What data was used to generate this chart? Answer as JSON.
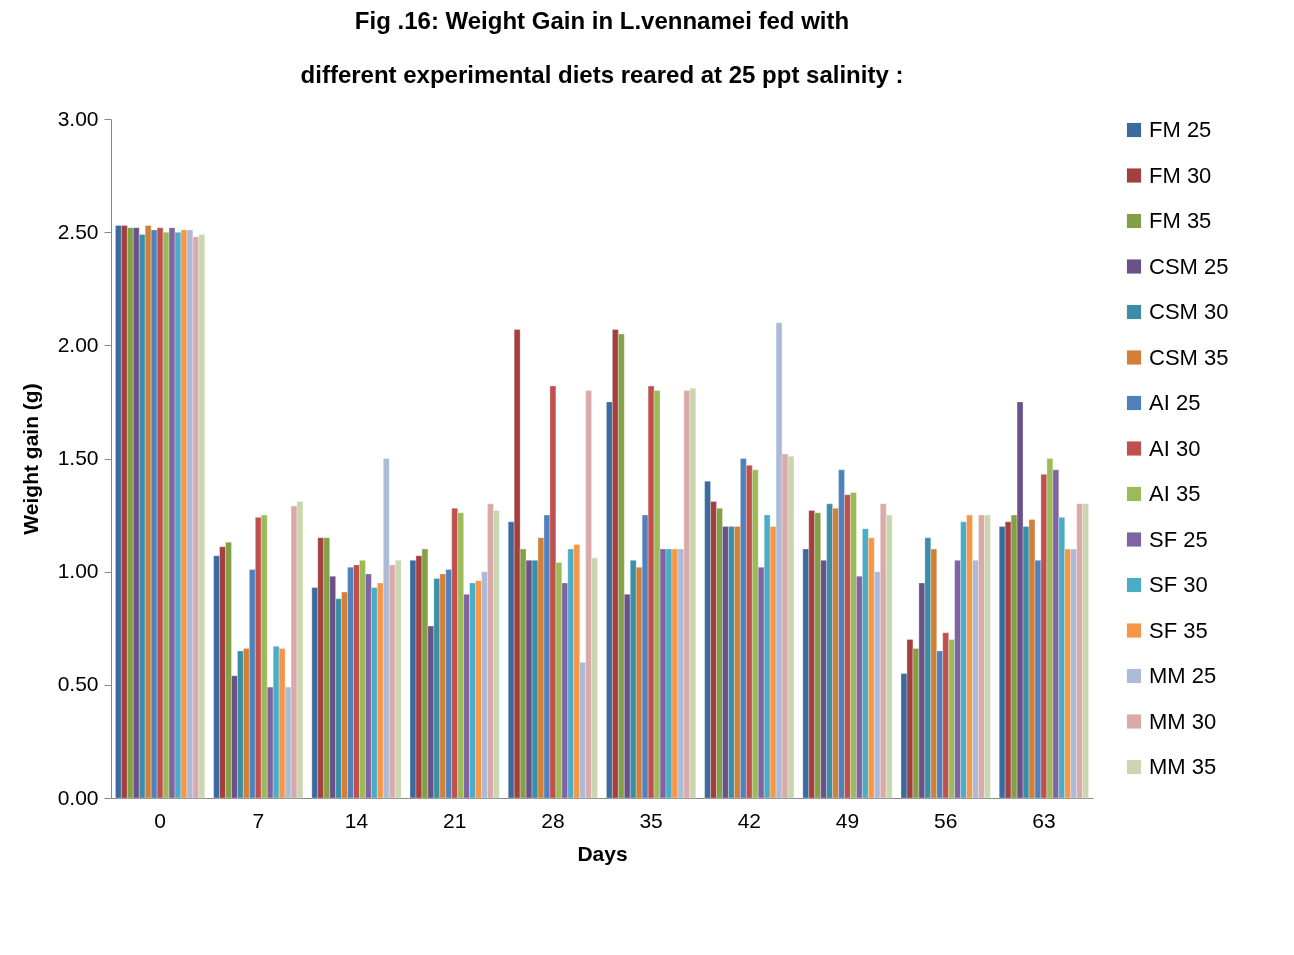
{
  "chart_data": {
    "type": "bar",
    "title": "Fig .16:  Weight Gain in L.vennamei fed with\ndifferent experimental diets reared at 25 ppt salinity :",
    "xlabel": "Days",
    "ylabel": "Weight gain (g)",
    "categories": [
      "0",
      "7",
      "14",
      "21",
      "28",
      "35",
      "42",
      "49",
      "56",
      "63"
    ],
    "ylim": [
      0,
      3
    ],
    "yticks": [
      {
        "value": 0,
        "label": "0.00"
      },
      {
        "value": 0.5,
        "label": "0.50"
      },
      {
        "value": 1,
        "label": "1.00"
      },
      {
        "value": 1.5,
        "label": "1.50"
      },
      {
        "value": 2,
        "label": "2.00"
      },
      {
        "value": 2.5,
        "label": "2.50"
      },
      {
        "value": 3,
        "label": "3.00"
      }
    ],
    "grid": false,
    "legend": "right",
    "series": [
      {
        "name": "FM 25",
        "color": "#3b6aa0",
        "values": [
          2.53,
          1.07,
          0.93,
          1.05,
          1.22,
          1.75,
          1.4,
          1.1,
          0.55,
          1.2
        ]
      },
      {
        "name": "FM 30",
        "color": "#a33f3c",
        "values": [
          2.53,
          1.11,
          1.15,
          1.07,
          2.07,
          2.07,
          1.31,
          1.27,
          0.7,
          1.22
        ]
      },
      {
        "name": "FM 35",
        "color": "#83a047",
        "values": [
          2.52,
          1.13,
          1.15,
          1.1,
          1.1,
          2.05,
          1.28,
          1.26,
          0.66,
          1.25
        ]
      },
      {
        "name": "CSM 25",
        "color": "#6a5189",
        "values": [
          2.52,
          0.54,
          0.98,
          0.76,
          1.05,
          0.9,
          1.2,
          1.05,
          0.95,
          1.75
        ]
      },
      {
        "name": "CSM 30",
        "color": "#3a8fa6",
        "values": [
          2.49,
          0.65,
          0.88,
          0.97,
          1.05,
          1.05,
          1.2,
          1.3,
          1.15,
          1.2
        ]
      },
      {
        "name": "CSM 35",
        "color": "#d27f37",
        "values": [
          2.53,
          0.66,
          0.91,
          0.99,
          1.15,
          1.02,
          1.2,
          1.28,
          1.1,
          1.23
        ]
      },
      {
        "name": "AI 25",
        "color": "#4f81bd",
        "values": [
          2.51,
          1.01,
          1.02,
          1.01,
          1.25,
          1.25,
          1.5,
          1.45,
          0.65,
          1.05
        ]
      },
      {
        "name": "AI 30",
        "color": "#c0504d",
        "values": [
          2.52,
          1.24,
          1.03,
          1.28,
          1.82,
          1.82,
          1.47,
          1.34,
          0.73,
          1.43
        ]
      },
      {
        "name": "AI 35",
        "color": "#9bbb59",
        "values": [
          2.5,
          1.25,
          1.05,
          1.26,
          1.04,
          1.8,
          1.45,
          1.35,
          0.7,
          1.5
        ]
      },
      {
        "name": "SF 25",
        "color": "#8064a2",
        "values": [
          2.52,
          0.49,
          0.99,
          0.9,
          0.95,
          1.1,
          1.02,
          0.98,
          1.05,
          1.45
        ]
      },
      {
        "name": "SF 30",
        "color": "#4bacc6",
        "values": [
          2.5,
          0.67,
          0.93,
          0.95,
          1.1,
          1.1,
          1.25,
          1.19,
          1.22,
          1.24
        ]
      },
      {
        "name": "SF 35",
        "color": "#f79646",
        "values": [
          2.51,
          0.66,
          0.95,
          0.96,
          1.12,
          1.1,
          1.2,
          1.15,
          1.25,
          1.1
        ]
      },
      {
        "name": "MM 25",
        "color": "#aabad7",
        "values": [
          2.51,
          0.49,
          1.5,
          1.0,
          0.6,
          1.1,
          2.1,
          1.0,
          1.05,
          1.1
        ]
      },
      {
        "name": "MM 30",
        "color": "#d9aaa9",
        "values": [
          2.48,
          1.29,
          1.03,
          1.3,
          1.8,
          1.8,
          1.52,
          1.3,
          1.25,
          1.3
        ]
      },
      {
        "name": "MM 35",
        "color": "#c9d6b0",
        "values": [
          2.49,
          1.31,
          1.05,
          1.27,
          1.06,
          1.81,
          1.51,
          1.25,
          1.25,
          1.3
        ]
      }
    ]
  }
}
